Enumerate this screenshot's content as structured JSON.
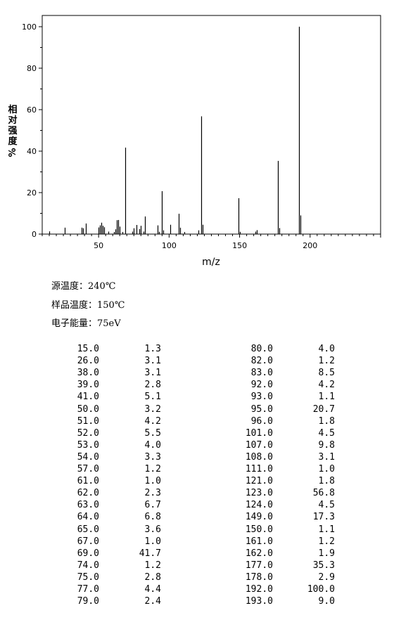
{
  "chart_data": {
    "type": "bar",
    "subtype": "mass-spectrum",
    "xlabel": "m/z",
    "ylabel": [
      "相",
      "对",
      "强",
      "度",
      "%"
    ],
    "xlim": [
      10,
      250
    ],
    "ylim": [
      0,
      100
    ],
    "xticks": [
      50,
      100,
      150,
      200
    ],
    "yticks": [
      0,
      20,
      40,
      60,
      80,
      100
    ],
    "x_minor_step": 5,
    "y_minor_step": 10,
    "grid": false,
    "legend": "none",
    "bar_color": "#000000",
    "peaks": [
      [
        15.0,
        1.3
      ],
      [
        26.0,
        3.1
      ],
      [
        38.0,
        3.1
      ],
      [
        39.0,
        2.8
      ],
      [
        41.0,
        5.1
      ],
      [
        50.0,
        3.2
      ],
      [
        51.0,
        4.2
      ],
      [
        52.0,
        5.5
      ],
      [
        53.0,
        4.0
      ],
      [
        54.0,
        3.3
      ],
      [
        57.0,
        1.2
      ],
      [
        61.0,
        1.0
      ],
      [
        62.0,
        2.3
      ],
      [
        63.0,
        6.7
      ],
      [
        64.0,
        6.8
      ],
      [
        65.0,
        3.6
      ],
      [
        67.0,
        1.0
      ],
      [
        69.0,
        41.7
      ],
      [
        74.0,
        1.2
      ],
      [
        75.0,
        2.8
      ],
      [
        77.0,
        4.4
      ],
      [
        79.0,
        2.4
      ],
      [
        80.0,
        4.0
      ],
      [
        82.0,
        1.2
      ],
      [
        83.0,
        8.5
      ],
      [
        92.0,
        4.2
      ],
      [
        93.0,
        1.1
      ],
      [
        95.0,
        20.7
      ],
      [
        96.0,
        1.8
      ],
      [
        101.0,
        4.5
      ],
      [
        107.0,
        9.8
      ],
      [
        108.0,
        3.1
      ],
      [
        111.0,
        1.0
      ],
      [
        121.0,
        1.8
      ],
      [
        123.0,
        56.8
      ],
      [
        124.0,
        4.5
      ],
      [
        149.0,
        17.3
      ],
      [
        150.0,
        1.1
      ],
      [
        161.0,
        1.2
      ],
      [
        162.0,
        1.9
      ],
      [
        177.0,
        35.3
      ],
      [
        178.0,
        2.9
      ],
      [
        192.0,
        100.0
      ],
      [
        193.0,
        9.0
      ]
    ]
  },
  "conditions": {
    "source_temp": "源温度：240℃",
    "sample_temp": "样品温度：150℃",
    "electron_energy": "电子能量：75eV"
  },
  "table": {
    "left": [
      [
        "15.0",
        "1.3"
      ],
      [
        "26.0",
        "3.1"
      ],
      [
        "38.0",
        "3.1"
      ],
      [
        "39.0",
        "2.8"
      ],
      [
        "41.0",
        "5.1"
      ],
      [
        "50.0",
        "3.2"
      ],
      [
        "51.0",
        "4.2"
      ],
      [
        "52.0",
        "5.5"
      ],
      [
        "53.0",
        "4.0"
      ],
      [
        "54.0",
        "3.3"
      ],
      [
        "57.0",
        "1.2"
      ],
      [
        "61.0",
        "1.0"
      ],
      [
        "62.0",
        "2.3"
      ],
      [
        "63.0",
        "6.7"
      ],
      [
        "64.0",
        "6.8"
      ],
      [
        "65.0",
        "3.6"
      ],
      [
        "67.0",
        "1.0"
      ],
      [
        "69.0",
        "41.7"
      ],
      [
        "74.0",
        "1.2"
      ],
      [
        "75.0",
        "2.8"
      ],
      [
        "77.0",
        "4.4"
      ],
      [
        "79.0",
        "2.4"
      ]
    ],
    "right": [
      [
        "80.0",
        "4.0"
      ],
      [
        "82.0",
        "1.2"
      ],
      [
        "83.0",
        "8.5"
      ],
      [
        "92.0",
        "4.2"
      ],
      [
        "93.0",
        "1.1"
      ],
      [
        "95.0",
        "20.7"
      ],
      [
        "96.0",
        "1.8"
      ],
      [
        "101.0",
        "4.5"
      ],
      [
        "107.0",
        "9.8"
      ],
      [
        "108.0",
        "3.1"
      ],
      [
        "111.0",
        "1.0"
      ],
      [
        "121.0",
        "1.8"
      ],
      [
        "123.0",
        "56.8"
      ],
      [
        "124.0",
        "4.5"
      ],
      [
        "149.0",
        "17.3"
      ],
      [
        "150.0",
        "1.1"
      ],
      [
        "161.0",
        "1.2"
      ],
      [
        "162.0",
        "1.9"
      ],
      [
        "177.0",
        "35.3"
      ],
      [
        "178.0",
        "2.9"
      ],
      [
        "192.0",
        "100.0"
      ],
      [
        "193.0",
        "9.0"
      ]
    ]
  }
}
